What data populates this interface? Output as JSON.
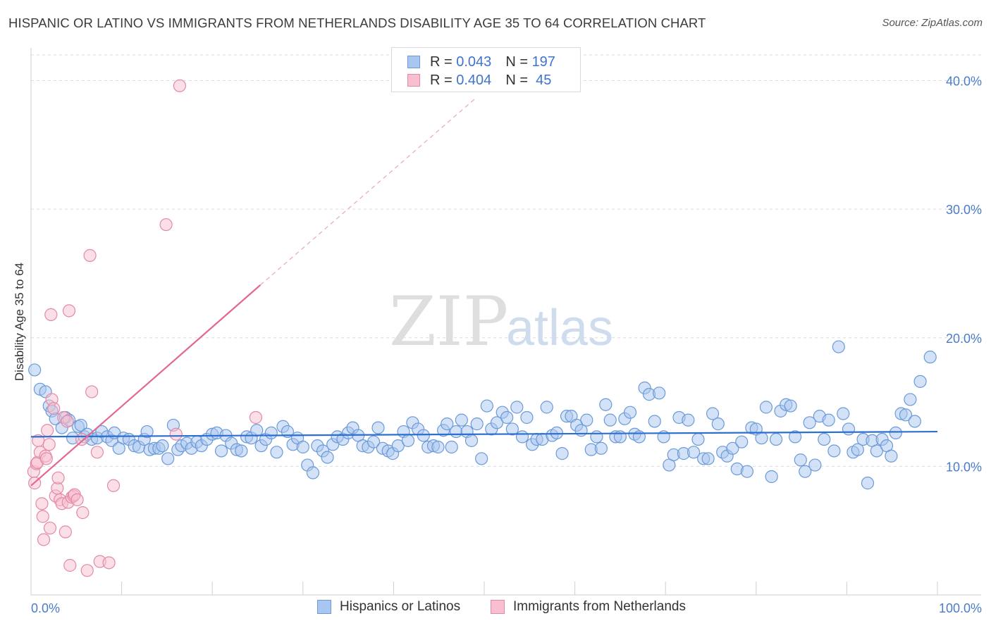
{
  "title": "HISPANIC OR LATINO VS IMMIGRANTS FROM NETHERLANDS DISABILITY AGE 35 TO 64 CORRELATION CHART",
  "source": "Source: ZipAtlas.com",
  "watermark": {
    "zip": "ZIP",
    "atlas": "atlas"
  },
  "legend_top": [
    {
      "r_label": "R =",
      "r_value": "0.043",
      "n_label": "N =",
      "n_value": "197",
      "color": "#a9c6f0",
      "border": "#6a9ad8"
    },
    {
      "r_label": "R =",
      "r_value": "0.404",
      "n_label": "N =",
      "n_value": "45",
      "color": "#f7bfd0",
      "border": "#e389a6"
    }
  ],
  "legend_bottom": [
    {
      "label": "Hispanics or Latinos",
      "color": "#a9c6f0",
      "border": "#6a9ad8"
    },
    {
      "label": "Immigrants from Netherlands",
      "color": "#f7bfd0",
      "border": "#e389a6"
    }
  ],
  "chart_data": {
    "type": "scatter",
    "title": "HISPANIC OR LATINO VS IMMIGRANTS FROM NETHERLANDS DISABILITY AGE 35 TO 64 CORRELATION CHART",
    "xlabel": "",
    "ylabel": "Disability Age 35 to 64",
    "xlim": [
      0,
      100
    ],
    "ylim": [
      0,
      42
    ],
    "x_tick_labels": [
      "0.0%",
      "100.0%"
    ],
    "y_ticks": [
      10,
      20,
      30,
      40
    ],
    "y_tick_labels": [
      "10.0%",
      "20.0%",
      "30.0%",
      "40.0%"
    ],
    "grid": "horizontal dashed",
    "legend_placement": "top-center",
    "series": [
      {
        "name": "Hispanics or Latinos",
        "color": "#a9c6f0",
        "stroke": "#6a9ad8",
        "trend": {
          "x": [
            0,
            100
          ],
          "y": [
            12.3,
            12.7
          ],
          "color": "#2d6fd1"
        },
        "points": [
          [
            0.4,
            17.5
          ],
          [
            1,
            16
          ],
          [
            1.6,
            15.8
          ],
          [
            2,
            14.7
          ],
          [
            2.3,
            14.3
          ],
          [
            2.7,
            13.7
          ],
          [
            3.4,
            13
          ],
          [
            3.8,
            13.8
          ],
          [
            4.2,
            13.6
          ],
          [
            4.6,
            12.2
          ],
          [
            5.2,
            13.1
          ],
          [
            5.5,
            13.2
          ],
          [
            5.9,
            12.3
          ],
          [
            6.2,
            12.5
          ],
          [
            6.7,
            12.1
          ],
          [
            7.3,
            12.2
          ],
          [
            7.8,
            12.7
          ],
          [
            8.4,
            12.3
          ],
          [
            8.9,
            12
          ],
          [
            9.2,
            12.6
          ],
          [
            9.7,
            11.4
          ],
          [
            10.2,
            12.2
          ],
          [
            10.8,
            12.1
          ],
          [
            11.4,
            11.6
          ],
          [
            11.9,
            11.5
          ],
          [
            12.5,
            12.1
          ],
          [
            12.8,
            12.7
          ],
          [
            13.1,
            11.3
          ],
          [
            13.6,
            11.4
          ],
          [
            14.1,
            11.4
          ],
          [
            14.5,
            11.6
          ],
          [
            15.1,
            10.6
          ],
          [
            15.7,
            13.2
          ],
          [
            16.2,
            11.3
          ],
          [
            16.6,
            11.6
          ],
          [
            17.2,
            11.8
          ],
          [
            17.7,
            11.4
          ],
          [
            18.3,
            11.9
          ],
          [
            18.8,
            11.6
          ],
          [
            19.4,
            12.1
          ],
          [
            20,
            12.5
          ],
          [
            20.5,
            12.6
          ],
          [
            21,
            11.2
          ],
          [
            21.5,
            12.4
          ],
          [
            22.1,
            11.8
          ],
          [
            22.7,
            11.3
          ],
          [
            23.2,
            11.2
          ],
          [
            23.8,
            12.3
          ],
          [
            24.3,
            12.2
          ],
          [
            24.9,
            12.8
          ],
          [
            25.4,
            11.6
          ],
          [
            25.9,
            12.1
          ],
          [
            26.5,
            12.6
          ],
          [
            27.1,
            11.1
          ],
          [
            27.8,
            13.1
          ],
          [
            28.3,
            12.7
          ],
          [
            28.9,
            11.7
          ],
          [
            29.4,
            12.2
          ],
          [
            30,
            11.5
          ],
          [
            30.5,
            10.1
          ],
          [
            31.1,
            9.5
          ],
          [
            31.6,
            11.6
          ],
          [
            32.2,
            11.2
          ],
          [
            32.7,
            10.7
          ],
          [
            33.3,
            11.7
          ],
          [
            33.8,
            12.3
          ],
          [
            34.4,
            12.1
          ],
          [
            35,
            12.6
          ],
          [
            35.5,
            13
          ],
          [
            36.1,
            12.4
          ],
          [
            36.6,
            11.6
          ],
          [
            37.2,
            11.5
          ],
          [
            37.8,
            11.9
          ],
          [
            38.3,
            13
          ],
          [
            38.8,
            11.4
          ],
          [
            39.4,
            11.2
          ],
          [
            39.9,
            11
          ],
          [
            40.5,
            11.6
          ],
          [
            41.1,
            12.7
          ],
          [
            41.6,
            12
          ],
          [
            42.1,
            13.4
          ],
          [
            42.7,
            12.9
          ],
          [
            43.3,
            12.4
          ],
          [
            43.8,
            11.5
          ],
          [
            44.4,
            11.6
          ],
          [
            44.9,
            11.5
          ],
          [
            45.5,
            12.8
          ],
          [
            45.9,
            13.3
          ],
          [
            46.4,
            11.5
          ],
          [
            46.9,
            12.7
          ],
          [
            47.5,
            13.6
          ],
          [
            48.1,
            12.7
          ],
          [
            48.6,
            12
          ],
          [
            49.2,
            13.3
          ],
          [
            49.7,
            10.6
          ],
          [
            50.3,
            14.7
          ],
          [
            50.8,
            12.9
          ],
          [
            51.4,
            13.4
          ],
          [
            52,
            14.2
          ],
          [
            52.5,
            13.8
          ],
          [
            53.1,
            12.9
          ],
          [
            53.6,
            14.6
          ],
          [
            54.2,
            12.3
          ],
          [
            54.7,
            13.8
          ],
          [
            55.3,
            11.7
          ],
          [
            55.8,
            12.1
          ],
          [
            56.4,
            12.1
          ],
          [
            56.9,
            14.6
          ],
          [
            57.5,
            12.4
          ],
          [
            58,
            12.6
          ],
          [
            58.6,
            11
          ],
          [
            59.1,
            13.9
          ],
          [
            59.6,
            13.9
          ],
          [
            60.2,
            13.2
          ],
          [
            60.7,
            12.8
          ],
          [
            61.3,
            13.6
          ],
          [
            61.8,
            11.3
          ],
          [
            62.4,
            12.3
          ],
          [
            62.9,
            11.4
          ],
          [
            63.4,
            14.8
          ],
          [
            63.9,
            13.6
          ],
          [
            64.5,
            12.3
          ],
          [
            65,
            12.3
          ],
          [
            65.5,
            13.7
          ],
          [
            66.1,
            14.2
          ],
          [
            66.6,
            12.5
          ],
          [
            67.1,
            12.3
          ],
          [
            67.7,
            16.1
          ],
          [
            68.2,
            15.6
          ],
          [
            68.8,
            13.5
          ],
          [
            69.3,
            15.7
          ],
          [
            69.8,
            12.3
          ],
          [
            70.4,
            10.1
          ],
          [
            70.9,
            10.9
          ],
          [
            71.5,
            13.8
          ],
          [
            72,
            11
          ],
          [
            72.5,
            13.6
          ],
          [
            73.1,
            11.1
          ],
          [
            73.6,
            12.1
          ],
          [
            74.2,
            10.6
          ],
          [
            74.7,
            10.6
          ],
          [
            75.2,
            14.1
          ],
          [
            75.8,
            13.3
          ],
          [
            76.3,
            11.1
          ],
          [
            76.8,
            10.8
          ],
          [
            77.4,
            11.4
          ],
          [
            77.9,
            9.8
          ],
          [
            78.4,
            11.9
          ],
          [
            79,
            9.6
          ],
          [
            79.5,
            13
          ],
          [
            80,
            12.9
          ],
          [
            80.6,
            12.2
          ],
          [
            81.1,
            14.6
          ],
          [
            81.7,
            9.2
          ],
          [
            82.2,
            12.1
          ],
          [
            82.7,
            14.3
          ],
          [
            83.3,
            14.8
          ],
          [
            83.8,
            14.7
          ],
          [
            84.3,
            12.3
          ],
          [
            84.9,
            10.5
          ],
          [
            85.4,
            9.6
          ],
          [
            85.9,
            13.4
          ],
          [
            86.5,
            10.1
          ],
          [
            87,
            13.9
          ],
          [
            87.5,
            12.1
          ],
          [
            88,
            13.6
          ],
          [
            88.6,
            11.2
          ],
          [
            89.1,
            19.3
          ],
          [
            89.6,
            14.1
          ],
          [
            90.2,
            12.9
          ],
          [
            90.7,
            11.1
          ],
          [
            91.2,
            11.3
          ],
          [
            91.8,
            12.1
          ],
          [
            92.3,
            8.7
          ],
          [
            92.8,
            12
          ],
          [
            93.3,
            11.2
          ],
          [
            93.9,
            12.1
          ],
          [
            94.4,
            11.6
          ],
          [
            94.9,
            10.8
          ],
          [
            95.4,
            12.6
          ],
          [
            96,
            14.1
          ],
          [
            96.5,
            14
          ],
          [
            97,
            15.2
          ],
          [
            97.5,
            13.5
          ],
          [
            98.1,
            16.6
          ],
          [
            99.2,
            18.5
          ]
        ]
      },
      {
        "name": "Immigrants from Netherlands",
        "color": "#f7bfd0",
        "stroke": "#e389a6",
        "trend": {
          "x": [
            0,
            25.3
          ],
          "y": [
            8.5,
            24.1
          ],
          "dashed_to": [
            49,
            38.6
          ],
          "color": "#e26892"
        },
        "points": [
          [
            0.3,
            9.6
          ],
          [
            0.4,
            8.7
          ],
          [
            0.6,
            10.2
          ],
          [
            0.7,
            10.3
          ],
          [
            0.8,
            12
          ],
          [
            1,
            11.1
          ],
          [
            1.2,
            7.1
          ],
          [
            1.3,
            6.1
          ],
          [
            1.4,
            4.3
          ],
          [
            1.6,
            10.8
          ],
          [
            1.7,
            10.6
          ],
          [
            1.8,
            12.8
          ],
          [
            2,
            11.7
          ],
          [
            2.1,
            5.2
          ],
          [
            2.2,
            21.8
          ],
          [
            2.3,
            15.2
          ],
          [
            2.5,
            14.5
          ],
          [
            2.7,
            7.7
          ],
          [
            2.9,
            8.3
          ],
          [
            3,
            9.1
          ],
          [
            3.2,
            7.4
          ],
          [
            3.4,
            7.1
          ],
          [
            3.6,
            13.8
          ],
          [
            3.8,
            4.9
          ],
          [
            4,
            13.5
          ],
          [
            4.1,
            7.2
          ],
          [
            4.2,
            22.1
          ],
          [
            4.3,
            2.3
          ],
          [
            4.5,
            7.6
          ],
          [
            4.7,
            7.7
          ],
          [
            4.8,
            7.8
          ],
          [
            5.1,
            7.4
          ],
          [
            5.6,
            12.1
          ],
          [
            5.7,
            6.4
          ],
          [
            6.2,
            1.9
          ],
          [
            6.5,
            26.4
          ],
          [
            6.7,
            15.8
          ],
          [
            7.3,
            11.1
          ],
          [
            7.6,
            2.6
          ],
          [
            8.6,
            2.5
          ],
          [
            9.1,
            8.5
          ],
          [
            14.9,
            28.8
          ],
          [
            16.4,
            39.6
          ],
          [
            24.8,
            13.8
          ],
          [
            16,
            12.5
          ]
        ]
      }
    ]
  }
}
